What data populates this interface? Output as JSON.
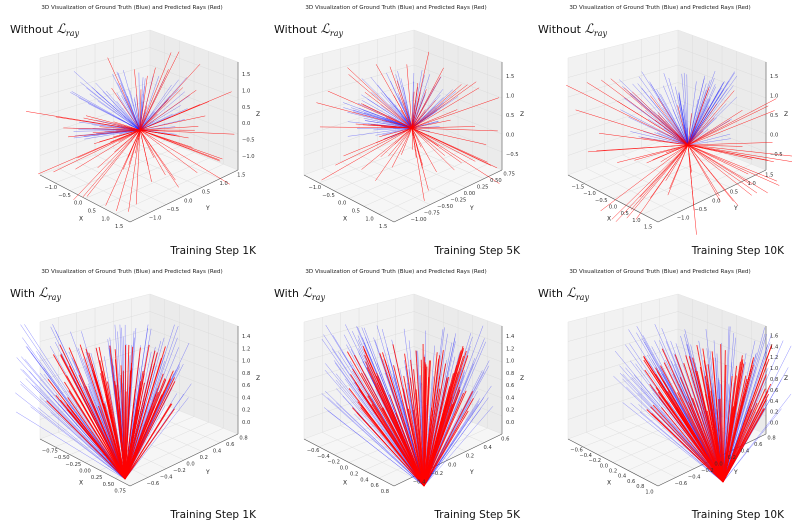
{
  "panels": [
    {
      "title": "3D Visualization of Ground Truth (Blue) and Predicted Rays (Red)",
      "condition_word": "Without",
      "loss_symbol": "ℒ",
      "loss_subscript": "ray",
      "step_label": "Training Step 1K",
      "axis_labels": {
        "x": "X",
        "y": "Y",
        "z": "Z"
      },
      "x_ticks": [
        "−1.0",
        "−0.5",
        "0.0",
        "0.5",
        "1.0",
        "1.5"
      ],
      "y_ticks": [
        "−1.0",
        "−0.5",
        "0.0",
        "0.5",
        "1.0",
        "1.5"
      ],
      "z_ticks": [
        "−1.0",
        "−0.5",
        "0.0",
        "0.5",
        "1.0",
        "1.5"
      ]
    },
    {
      "title": "3D Visualization of Ground Truth (Blue) and Predicted Rays (Red)",
      "condition_word": "Without",
      "loss_symbol": "ℒ",
      "loss_subscript": "ray",
      "step_label": "Training Step 5K",
      "axis_labels": {
        "x": "X",
        "y": "Y",
        "z": "Z"
      },
      "x_ticks": [
        "−1.0",
        "−0.5",
        "0.0",
        "0.5",
        "1.0",
        "1.5"
      ],
      "y_ticks": [
        "−1.00",
        "−0.75",
        "−0.50",
        "−0.25",
        "0.00",
        "0.25",
        "0.50",
        "0.75"
      ],
      "z_ticks": [
        "−0.5",
        "0.0",
        "0.5",
        "1.0",
        "1.5"
      ]
    },
    {
      "title": "3D Visualization of Ground Truth (Blue) and Predicted Rays (Red)",
      "condition_word": "Without",
      "loss_symbol": "ℒ",
      "loss_subscript": "ray",
      "step_label": "Training Step 10K",
      "axis_labels": {
        "x": "X",
        "y": "Y",
        "z": "Z"
      },
      "x_ticks": [
        "−1.5",
        "−1.0",
        "−0.5",
        "0.0",
        "0.5",
        "1.0",
        "1.5"
      ],
      "y_ticks": [
        "−1.0",
        "−0.5",
        "0.0",
        "0.5",
        "1.0",
        "1.5"
      ],
      "z_ticks": [
        "−0.5",
        "0.0",
        "0.5",
        "1.0",
        "1.5"
      ]
    },
    {
      "title": "3D Visualization of Ground Truth (Blue) and Predicted Rays (Red)",
      "condition_word": "With",
      "loss_symbol": "ℒ",
      "loss_subscript": "ray",
      "step_label": "Training Step 1K",
      "axis_labels": {
        "x": "X",
        "y": "Y",
        "z": "Z"
      },
      "x_ticks": [
        "−0.75",
        "−0.50",
        "−0.25",
        "0.00",
        "0.25",
        "0.50",
        "0.75"
      ],
      "y_ticks": [
        "−0.6",
        "−0.4",
        "−0.2",
        "0.0",
        "0.2",
        "0.4",
        "0.6",
        "0.8"
      ],
      "z_ticks": [
        "0.0",
        "0.2",
        "0.4",
        "0.6",
        "0.8",
        "1.0",
        "1.2",
        "1.4"
      ]
    },
    {
      "title": "3D Visualization of Ground Truth (Blue) and Predicted Rays (Red)",
      "condition_word": "With",
      "loss_symbol": "ℒ",
      "loss_subscript": "ray",
      "step_label": "Training Step 5K",
      "axis_labels": {
        "x": "X",
        "y": "Y",
        "z": "Z"
      },
      "x_ticks": [
        "−0.6",
        "−0.4",
        "−0.2",
        "0.0",
        "0.2",
        "0.4",
        "0.6",
        "0.8"
      ],
      "y_ticks": [
        "−0.4",
        "−0.2",
        "0.0",
        "0.2",
        "0.4",
        "0.6"
      ],
      "z_ticks": [
        "0.0",
        "0.2",
        "0.4",
        "0.6",
        "0.8",
        "1.0",
        "1.2",
        "1.4"
      ]
    },
    {
      "title": "3D Visualization of Ground Truth (Blue) and Predicted Rays (Red)",
      "condition_word": "With",
      "loss_symbol": "ℒ",
      "loss_subscript": "ray",
      "step_label": "Training Step 10K",
      "axis_labels": {
        "x": "X",
        "y": "Y",
        "z": "Z"
      },
      "x_ticks": [
        "−0.6",
        "−0.4",
        "−0.2",
        "0.0",
        "0.2",
        "0.4",
        "0.6",
        "0.8",
        "1.0"
      ],
      "y_ticks": [
        "−0.6",
        "−0.4",
        "−0.2",
        "0.0",
        "0.2",
        "0.4",
        "0.6",
        "0.8"
      ],
      "z_ticks": [
        "0.0",
        "0.2",
        "0.4",
        "0.6",
        "0.8",
        "1.0",
        "1.2",
        "1.4",
        "1.6"
      ]
    }
  ],
  "colors": {
    "ground_truth": "#1a1aff",
    "predicted": "#ff0000",
    "pane": "#f2f2f2",
    "grid": "#d8d8d8"
  }
}
